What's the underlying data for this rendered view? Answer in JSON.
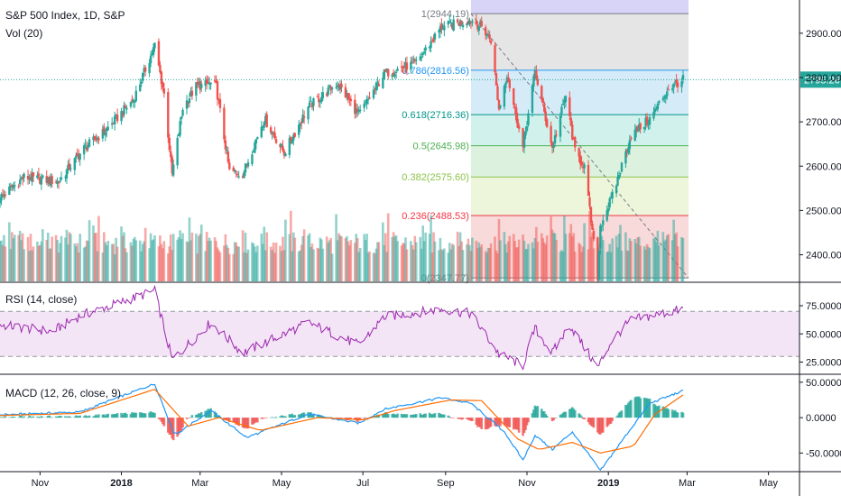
{
  "chart_data": [
    {
      "type": "candlestick",
      "title": "S&P 500 Index, 1D, S&P",
      "indicator_label": "Vol (20)",
      "x_ticks": [
        "Nov",
        "2018",
        "Mar",
        "May",
        "Jul",
        "Sep",
        "Nov",
        "2019",
        "Mar",
        "May"
      ],
      "y_ticks": [
        "2900.00",
        "2800.00",
        "2700.00",
        "2600.00",
        "2500.00",
        "2400.00"
      ],
      "ylim": [
        2340,
        2975
      ],
      "last_price_label": "2795.26",
      "last_price": 2795.26,
      "close_path": [
        [
          "2017-10-02",
          2529
        ],
        [
          "2017-10-20",
          2575
        ],
        [
          "2017-11-15",
          2565
        ],
        [
          "2017-12-04",
          2640
        ],
        [
          "2017-12-20",
          2680
        ],
        [
          "2018-01-10",
          2750
        ],
        [
          "2018-01-26",
          2872
        ],
        [
          "2018-02-02",
          2762
        ],
        [
          "2018-02-08",
          2581
        ],
        [
          "2018-02-16",
          2732
        ],
        [
          "2018-02-26",
          2780
        ],
        [
          "2018-03-09",
          2786
        ],
        [
          "2018-03-13",
          2780
        ],
        [
          "2018-03-23",
          2588
        ],
        [
          "2018-04-02",
          2582
        ],
        [
          "2018-04-18",
          2708
        ],
        [
          "2018-05-03",
          2630
        ],
        [
          "2018-05-21",
          2733
        ],
        [
          "2018-06-12",
          2787
        ],
        [
          "2018-06-28",
          2715
        ],
        [
          "2018-07-17",
          2809
        ],
        [
          "2018-08-10",
          2833
        ],
        [
          "2018-08-29",
          2914
        ],
        [
          "2018-09-20",
          2930
        ],
        [
          "2018-09-28",
          2914
        ],
        [
          "2018-10-05",
          2885
        ],
        [
          "2018-10-11",
          2728
        ],
        [
          "2018-10-17",
          2809
        ],
        [
          "2018-10-29",
          2641
        ],
        [
          "2018-11-07",
          2814
        ],
        [
          "2018-11-20",
          2641
        ],
        [
          "2018-11-30",
          2760
        ],
        [
          "2018-12-07",
          2633
        ],
        [
          "2018-12-14",
          2599
        ],
        [
          "2018-12-24",
          2351
        ],
        [
          "2018-12-26",
          2467
        ],
        [
          "2019-01-04",
          2532
        ],
        [
          "2019-01-18",
          2670
        ],
        [
          "2019-02-01",
          2706
        ],
        [
          "2019-02-15",
          2775
        ],
        [
          "2019-02-26",
          2795.26
        ]
      ],
      "fib_start": {
        "date": "2018-09-20",
        "value": 2944.19
      },
      "fib_end": {
        "date": "2019-02-26",
        "value": 2347.77
      },
      "fib_levels": [
        {
          "ratio": 1,
          "label": "1(2944.19)",
          "value": 2944.19,
          "color": "#787b86"
        },
        {
          "ratio": 0.786,
          "label": "0.786(2816.56)",
          "value": 2816.56,
          "color": "#2196f3"
        },
        {
          "ratio": 0.618,
          "label": "0.618(2716.36)",
          "value": 2716.36,
          "color": "#009688"
        },
        {
          "ratio": 0.5,
          "label": "0.5(2645.98)",
          "value": 2645.98,
          "color": "#4caf50"
        },
        {
          "ratio": 0.382,
          "label": "0.382(2575.60)",
          "value": 2575.6,
          "color": "#8bc34a"
        },
        {
          "ratio": 0.236,
          "label": "0.236(2488.53)",
          "value": 2488.53,
          "color": "#f23645"
        },
        {
          "ratio": 0,
          "label": "0(2347.77)",
          "value": 2347.77,
          "color": "#787b86"
        }
      ],
      "colors": {
        "up": "#26a69a",
        "down": "#ef5350",
        "price_line": "#26a69a"
      }
    },
    {
      "type": "line",
      "title": "RSI (14, close)",
      "y_ticks": [
        "75.0000",
        "50.0000",
        "25.0000"
      ],
      "ylim": [
        15,
        95
      ],
      "band": [
        30,
        70
      ],
      "path": [
        [
          "2017-10-02",
          58
        ],
        [
          "2017-11-10",
          52
        ],
        [
          "2017-12-01",
          66
        ],
        [
          "2018-01-26",
          88
        ],
        [
          "2018-02-08",
          27
        ],
        [
          "2018-03-09",
          60
        ],
        [
          "2018-04-02",
          33
        ],
        [
          "2018-05-21",
          60
        ],
        [
          "2018-06-28",
          40
        ],
        [
          "2018-07-17",
          65
        ],
        [
          "2018-08-29",
          72
        ],
        [
          "2018-09-20",
          68
        ],
        [
          "2018-10-11",
          32
        ],
        [
          "2018-10-29",
          22
        ],
        [
          "2018-11-07",
          55
        ],
        [
          "2018-11-20",
          33
        ],
        [
          "2018-12-03",
          58
        ],
        [
          "2018-12-24",
          20
        ],
        [
          "2019-01-04",
          45
        ],
        [
          "2019-01-18",
          62
        ],
        [
          "2019-02-26",
          72
        ]
      ],
      "color": "#9c27b0"
    },
    {
      "type": "line",
      "title": "MACD (12, 26, close, 9)",
      "y_ticks": [
        "50.0000",
        "0.0000",
        "-50.0000"
      ],
      "ylim": [
        -75,
        60
      ],
      "macd": [
        [
          "2017-10-02",
          4
        ],
        [
          "2017-12-01",
          8
        ],
        [
          "2018-01-26",
          48
        ],
        [
          "2018-02-10",
          -25
        ],
        [
          "2018-03-09",
          10
        ],
        [
          "2018-04-05",
          -28
        ],
        [
          "2018-05-21",
          5
        ],
        [
          "2018-06-28",
          -8
        ],
        [
          "2018-07-17",
          12
        ],
        [
          "2018-08-29",
          28
        ],
        [
          "2018-09-20",
          20
        ],
        [
          "2018-10-15",
          -20
        ],
        [
          "2018-10-29",
          -60
        ],
        [
          "2018-11-07",
          -25
        ],
        [
          "2018-11-20",
          -45
        ],
        [
          "2018-12-05",
          -20
        ],
        [
          "2018-12-26",
          -75
        ],
        [
          "2019-01-18",
          -15
        ],
        [
          "2019-02-01",
          20
        ],
        [
          "2019-02-26",
          38
        ]
      ],
      "signal": [
        [
          "2017-10-02",
          3
        ],
        [
          "2017-12-01",
          6
        ],
        [
          "2018-01-26",
          40
        ],
        [
          "2018-02-20",
          -12
        ],
        [
          "2018-03-15",
          0
        ],
        [
          "2018-04-15",
          -18
        ],
        [
          "2018-05-28",
          0
        ],
        [
          "2018-07-02",
          -3
        ],
        [
          "2018-07-25",
          10
        ],
        [
          "2018-09-05",
          25
        ],
        [
          "2018-09-28",
          24
        ],
        [
          "2018-10-25",
          -30
        ],
        [
          "2018-11-10",
          -45
        ],
        [
          "2018-12-05",
          -35
        ],
        [
          "2018-12-26",
          -50
        ],
        [
          "2019-01-20",
          -40
        ],
        [
          "2019-02-05",
          5
        ],
        [
          "2019-02-26",
          32
        ]
      ],
      "colors": {
        "macd": "#2196f3",
        "signal": "#ff6d00",
        "hist_up": "#26a69a",
        "hist_down": "#ef5350"
      }
    }
  ]
}
